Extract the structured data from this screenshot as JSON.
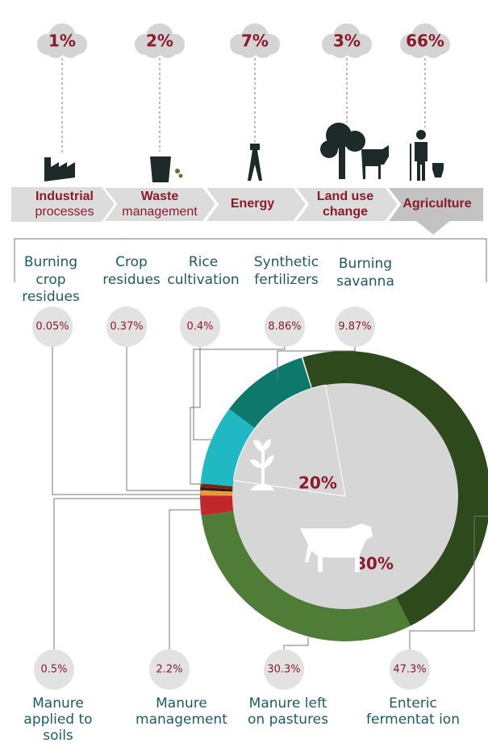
{
  "sectors": [
    {
      "value": 1,
      "label": "1%",
      "name": [
        "Industrial",
        "processes"
      ]
    },
    {
      "value": 2,
      "label": "2%",
      "name": [
        "Waste",
        "management"
      ]
    },
    {
      "value": 7,
      "label": "7%",
      "name": [
        "Energy"
      ]
    },
    {
      "value": 3,
      "label": "3%",
      "name": [
        "Land use",
        "change"
      ]
    },
    {
      "value": 66,
      "label": "66%",
      "name": [
        "Agriculture"
      ]
    }
  ],
  "top_sources": [
    {
      "name": [
        "Burning",
        "crop",
        "residues"
      ],
      "value": 0.05,
      "label": "0.05%",
      "color": "#f2d46a"
    },
    {
      "name": [
        "Crop",
        "residues"
      ],
      "value": 0.37,
      "label": "0.37%",
      "color": "#3a1a12"
    },
    {
      "name": [
        "Rice",
        "cultivation"
      ],
      "value": 0.4,
      "label": "0.4%",
      "color": "#7a2418"
    },
    {
      "name": [
        "Synthetic",
        "fertilizers"
      ],
      "value": 8.86,
      "label": "8.86%",
      "color": "#1fb8c3"
    },
    {
      "name": [
        "Burning",
        "savanna"
      ],
      "value": 9.87,
      "label": "9.87%",
      "color": "#0e786d"
    }
  ],
  "bottom_sources": [
    {
      "name": [
        "Manure",
        "applied to",
        "soils"
      ],
      "value": 0.5,
      "label": "0.5%",
      "color": "#e79a36"
    },
    {
      "name": [
        "Manure",
        "management"
      ],
      "value": 2.2,
      "label": "2.2%",
      "color": "#c1262c"
    },
    {
      "name": [
        "Manure left",
        "on pastures"
      ],
      "value": 30.3,
      "label": "30.3%",
      "color": "#4f7c36"
    },
    {
      "name": [
        "Enteric",
        "fermentat ion"
      ],
      "value": 47.3,
      "label": "47.3%",
      "color": "#2e4a1d"
    }
  ],
  "inner": [
    {
      "value": 20,
      "label": "20%"
    },
    {
      "value": 80,
      "label": "80%"
    }
  ]
}
